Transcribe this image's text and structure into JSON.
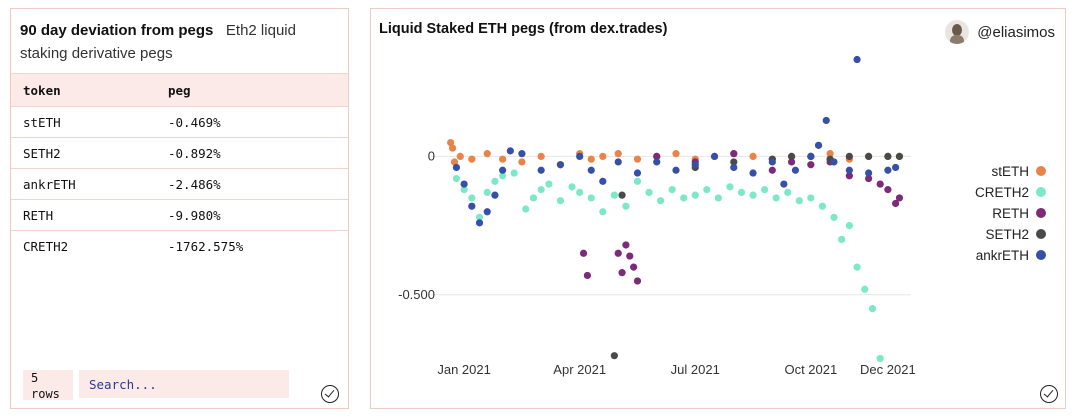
{
  "left": {
    "title_bold": "90 day deviation from pegs",
    "title_sub": "Eth2 liquid staking derivative pegs",
    "columns": [
      "token",
      "peg"
    ],
    "rows": [
      [
        "stETH",
        "-0.469%"
      ],
      [
        "SETH2",
        "-0.892%"
      ],
      [
        "ankrETH",
        "-2.486%"
      ],
      [
        "RETH",
        "-9.980%"
      ],
      [
        "CRETH2",
        "-1762.575%"
      ]
    ],
    "rows_count": "5",
    "rows_label": "rows",
    "search_placeholder": "Search..."
  },
  "right": {
    "author": "@eliasimos"
  },
  "colors": {
    "stETH": "#e8834a",
    "CRETH2": "#7ce8c8",
    "RETH": "#7d2a78",
    "SETH2": "#4a4a4a",
    "ankrETH": "#3650a8"
  },
  "chart_data": {
    "type": "scatter",
    "title": "Liquid Staked ETH pegs (from dex.trades)",
    "xlabel": "",
    "ylabel": "",
    "x_ticks": [
      "Jan 2021",
      "Apr 2021",
      "Jul 2021",
      "Oct 2021",
      "Dec 2021"
    ],
    "x_tick_pos": [
      0,
      3,
      6,
      9,
      11
    ],
    "xlim": [
      -0.6,
      11.6
    ],
    "y_ticks": [
      0,
      -0.5
    ],
    "y_tick_labels": [
      "0",
      "-0.500"
    ],
    "ylim": [
      -0.75,
      0.37
    ],
    "legend": [
      "stETH",
      "CRETH2",
      "RETH",
      "SETH2",
      "ankrETH"
    ],
    "legend_position": "right",
    "series": [
      {
        "name": "stETH",
        "points": [
          [
            -0.35,
            0.05
          ],
          [
            -0.3,
            0.03
          ],
          [
            -0.25,
            -0.02
          ],
          [
            -0.1,
            0.0
          ],
          [
            0.2,
            -0.01
          ],
          [
            0.6,
            0.01
          ],
          [
            1.0,
            -0.01
          ],
          [
            1.5,
            -0.02
          ],
          [
            2.0,
            0.0
          ],
          [
            2.5,
            -0.03
          ],
          [
            3.0,
            0.01
          ],
          [
            3.3,
            -0.01
          ],
          [
            3.6,
            0.0
          ],
          [
            4.0,
            0.01
          ],
          [
            4.5,
            -0.01
          ],
          [
            5.0,
            0.0
          ],
          [
            5.5,
            0.01
          ],
          [
            6.0,
            -0.01
          ],
          [
            6.5,
            0.0
          ],
          [
            7.0,
            0.01
          ],
          [
            7.5,
            0.0
          ],
          [
            8.0,
            -0.01
          ],
          [
            8.5,
            0.0
          ],
          [
            9.0,
            0.0
          ],
          [
            9.5,
            0.01
          ],
          [
            10.0,
            -0.01
          ],
          [
            10.5,
            0.0
          ],
          [
            11.0,
            0.0
          ],
          [
            11.3,
            0.0
          ]
        ]
      },
      {
        "name": "CRETH2",
        "points": [
          [
            -0.2,
            -0.08
          ],
          [
            0.0,
            -0.12
          ],
          [
            0.2,
            -0.15
          ],
          [
            0.4,
            -0.22
          ],
          [
            0.6,
            -0.13
          ],
          [
            0.8,
            -0.09
          ],
          [
            1.0,
            -0.07
          ],
          [
            1.3,
            -0.06
          ],
          [
            1.6,
            -0.19
          ],
          [
            1.8,
            -0.15
          ],
          [
            2.0,
            -0.12
          ],
          [
            2.2,
            -0.1
          ],
          [
            2.5,
            -0.16
          ],
          [
            2.8,
            -0.11
          ],
          [
            3.0,
            -0.13
          ],
          [
            3.3,
            -0.15
          ],
          [
            3.6,
            -0.2
          ],
          [
            3.9,
            -0.14
          ],
          [
            4.2,
            -0.18
          ],
          [
            4.5,
            -0.09
          ],
          [
            4.8,
            -0.13
          ],
          [
            5.1,
            -0.16
          ],
          [
            5.4,
            -0.12
          ],
          [
            5.7,
            -0.15
          ],
          [
            6.0,
            -0.14
          ],
          [
            6.3,
            -0.12
          ],
          [
            6.6,
            -0.15
          ],
          [
            6.9,
            -0.11
          ],
          [
            7.2,
            -0.13
          ],
          [
            7.5,
            -0.14
          ],
          [
            7.8,
            -0.12
          ],
          [
            8.1,
            -0.15
          ],
          [
            8.4,
            -0.13
          ],
          [
            8.7,
            -0.16
          ],
          [
            9.0,
            -0.15
          ],
          [
            9.3,
            -0.18
          ],
          [
            9.6,
            -0.22
          ],
          [
            9.8,
            -0.3
          ],
          [
            10.0,
            -0.25
          ],
          [
            10.2,
            -0.4
          ],
          [
            10.4,
            -0.48
          ],
          [
            10.6,
            -0.55
          ],
          [
            10.8,
            -0.73
          ]
        ]
      },
      {
        "name": "RETH",
        "points": [
          [
            3.1,
            -0.35
          ],
          [
            3.2,
            -0.43
          ],
          [
            4.2,
            -0.32
          ],
          [
            4.3,
            -0.36
          ],
          [
            4.4,
            -0.4
          ],
          [
            4.5,
            -0.45
          ],
          [
            4.0,
            -0.35
          ],
          [
            4.1,
            -0.42
          ],
          [
            5.0,
            0.0
          ],
          [
            6.0,
            -0.02
          ],
          [
            7.0,
            0.01
          ],
          [
            8.0,
            -0.05
          ],
          [
            8.5,
            -0.02
          ],
          [
            9.0,
            -0.03
          ],
          [
            9.5,
            -0.02
          ],
          [
            10.0,
            -0.07
          ],
          [
            10.5,
            -0.08
          ],
          [
            10.8,
            -0.1
          ],
          [
            11.0,
            -0.12
          ],
          [
            11.2,
            -0.17
          ],
          [
            11.3,
            -0.15
          ]
        ]
      },
      {
        "name": "SETH2",
        "points": [
          [
            3.9,
            -0.72
          ],
          [
            4.1,
            -0.14
          ],
          [
            6.0,
            -0.04
          ],
          [
            7.0,
            -0.02
          ],
          [
            8.0,
            -0.01
          ],
          [
            8.5,
            0.0
          ],
          [
            9.0,
            0.0
          ],
          [
            9.5,
            -0.01
          ],
          [
            10.0,
            0.0
          ],
          [
            10.5,
            0.0
          ],
          [
            11.0,
            0.0
          ],
          [
            11.3,
            0.0
          ]
        ]
      },
      {
        "name": "ankrETH",
        "points": [
          [
            -0.2,
            -0.04
          ],
          [
            0.0,
            -0.1
          ],
          [
            0.2,
            -0.18
          ],
          [
            0.4,
            -0.24
          ],
          [
            0.6,
            -0.2
          ],
          [
            0.8,
            -0.14
          ],
          [
            1.0,
            -0.05
          ],
          [
            1.2,
            0.02
          ],
          [
            1.5,
            0.01
          ],
          [
            2.0,
            -0.05
          ],
          [
            2.5,
            -0.03
          ],
          [
            3.0,
            0.0
          ],
          [
            3.3,
            -0.05
          ],
          [
            3.6,
            -0.09
          ],
          [
            4.0,
            -0.02
          ],
          [
            4.5,
            -0.06
          ],
          [
            5.0,
            -0.02
          ],
          [
            5.5,
            -0.05
          ],
          [
            6.0,
            -0.03
          ],
          [
            6.5,
            0.0
          ],
          [
            7.0,
            -0.04
          ],
          [
            7.5,
            -0.06
          ],
          [
            8.0,
            -0.02
          ],
          [
            8.3,
            -0.1
          ],
          [
            8.6,
            -0.05
          ],
          [
            9.0,
            0.0
          ],
          [
            9.2,
            0.04
          ],
          [
            9.4,
            0.13
          ],
          [
            9.6,
            -0.02
          ],
          [
            10.0,
            -0.05
          ],
          [
            10.2,
            0.35
          ],
          [
            10.5,
            -0.06
          ],
          [
            11.0,
            -0.05
          ],
          [
            11.2,
            -0.04
          ]
        ]
      }
    ]
  }
}
